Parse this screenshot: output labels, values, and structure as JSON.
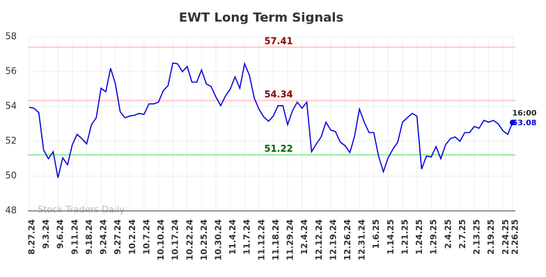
{
  "chart_data": {
    "type": "line",
    "title": "EWT Long Term Signals",
    "categories": [
      "8.27.24",
      null,
      null,
      "9.3.24",
      null,
      null,
      "9.6.24",
      null,
      null,
      "9.11.24",
      null,
      null,
      "9.18.24",
      null,
      null,
      "9.24.24",
      null,
      null,
      "9.27.24",
      null,
      null,
      "10.2.24",
      null,
      null,
      "10.7.24",
      null,
      null,
      "10.10.24",
      null,
      null,
      "10.17.24",
      null,
      null,
      "10.22.24",
      null,
      null,
      "10.25.24",
      null,
      null,
      "10.30.24",
      null,
      null,
      "11.4.24",
      null,
      null,
      "11.7.24",
      null,
      null,
      "11.12.24",
      null,
      null,
      "11.18.24",
      null,
      null,
      "11.29.24",
      null,
      null,
      "12.4.24",
      null,
      null,
      "12.12.24",
      null,
      null,
      "12.19.24",
      null,
      null,
      "12.26.24",
      null,
      null,
      "12.31.24",
      null,
      null,
      "1.6.25",
      null,
      null,
      "1.14.25",
      null,
      null,
      "1.21.25",
      null,
      null,
      "1.24.25",
      null,
      null,
      "1.29.25",
      null,
      null,
      "2.4.25",
      null,
      null,
      "2.7.25",
      null,
      null,
      "2.13.25",
      null,
      null,
      "2.19.25",
      null,
      null,
      "2.24.25",
      null,
      "2.26.25"
    ],
    "values": [
      53.95,
      53.9,
      53.65,
      51.5,
      51.0,
      51.4,
      49.9,
      51.05,
      50.65,
      51.8,
      52.4,
      52.15,
      51.85,
      52.95,
      53.35,
      55.05,
      54.85,
      56.2,
      55.3,
      53.7,
      53.35,
      53.45,
      53.5,
      53.6,
      53.55,
      54.15,
      54.15,
      54.25,
      54.9,
      55.2,
      56.5,
      56.45,
      56.0,
      56.3,
      55.4,
      55.4,
      56.1,
      55.3,
      55.15,
      54.55,
      54.05,
      54.6,
      55.0,
      55.7,
      55.05,
      56.45,
      55.8,
      54.5,
      53.85,
      53.4,
      53.15,
      53.45,
      54.05,
      54.05,
      52.95,
      53.75,
      54.25,
      53.9,
      54.25,
      51.4,
      51.85,
      52.25,
      53.1,
      52.65,
      52.55,
      51.95,
      51.75,
      51.35,
      52.3,
      53.85,
      53.1,
      52.5,
      52.5,
      51.15,
      50.25,
      51.05,
      51.55,
      51.95,
      53.1,
      53.35,
      53.6,
      53.45,
      50.4,
      51.15,
      51.1,
      51.7,
      51.0,
      51.8,
      52.15,
      52.25,
      52.0,
      52.5,
      52.5,
      52.85,
      52.75,
      53.2,
      53.1,
      53.2,
      53.0,
      52.6,
      52.4,
      53.08
    ],
    "color": "#0000dd",
    "ylim": [
      48,
      58
    ],
    "yticks": [
      48,
      50,
      52,
      54,
      56,
      58
    ],
    "grid": true,
    "hlines": [
      {
        "value": 57.41,
        "color": "#8b0000",
        "line_color": "#ffc8c8"
      },
      {
        "value": 54.34,
        "color": "#8b0000",
        "line_color": "#ffc8c8"
      },
      {
        "value": 51.22,
        "color": "#006400",
        "line_color": "#90ee90"
      }
    ],
    "last_time": "16:00",
    "watermark": "Stock Traders Daily"
  }
}
